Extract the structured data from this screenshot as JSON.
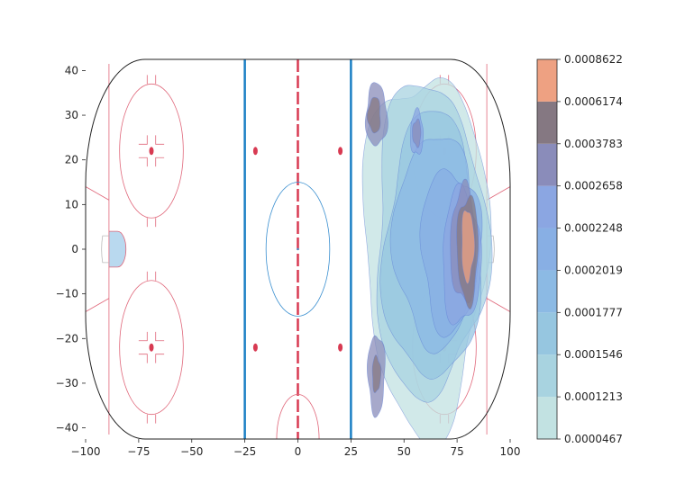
{
  "chart_data": {
    "type": "contour",
    "title": "",
    "xlabel": "",
    "ylabel": "",
    "xlim": [
      -100,
      100
    ],
    "ylim": [
      -42.5,
      42.5
    ],
    "x_ticks": [
      -100,
      -75,
      -50,
      -25,
      0,
      25,
      50,
      75,
      100
    ],
    "y_ticks": [
      -40,
      -30,
      -20,
      -10,
      0,
      10,
      20,
      30,
      40
    ],
    "grid": false,
    "background": "hockey-rink",
    "rink_features": {
      "center_line_x": 0,
      "blue_lines_x": [
        -25,
        25
      ],
      "goal_lines_x": [
        -89,
        89
      ],
      "center_circle_radius": 15,
      "faceoff_circles": [
        [
          -69,
          22
        ],
        [
          -69,
          -22
        ],
        [
          69,
          22
        ],
        [
          69,
          -22
        ]
      ],
      "neutral_dots": [
        [
          -20,
          22
        ],
        [
          -20,
          -22
        ],
        [
          20,
          22
        ],
        [
          20,
          -22
        ]
      ]
    },
    "colorbar": {
      "levels": [
        "0.0000467",
        "0.0001213",
        "0.0001546",
        "0.0001777",
        "0.0002019",
        "0.0002248",
        "0.0002658",
        "0.0003783",
        "0.0006174",
        "0.0008622"
      ],
      "colors": [
        "#c2e2e2",
        "#a8d3e0",
        "#96c6e0",
        "#8cbae4",
        "#88afe4",
        "#8ba6e2",
        "#8a8cba",
        "#857882",
        "#eea182"
      ]
    },
    "density_regions": [
      {
        "level": 1,
        "center": [
          60,
          0
        ],
        "radius": [
          29,
          40
        ]
      },
      {
        "level": 2,
        "center": [
          62,
          2
        ],
        "radius": [
          26,
          35
        ]
      },
      {
        "level": 3,
        "center": [
          63,
          0
        ],
        "radius": [
          22,
          30
        ]
      },
      {
        "level": 4,
        "center": [
          64,
          2
        ],
        "radius": [
          18,
          24
        ]
      },
      {
        "level": 5,
        "center": [
          72,
          0
        ],
        "radius": [
          14,
          18
        ]
      },
      {
        "level": 6,
        "center": [
          77,
          -2
        ],
        "radius": [
          9,
          15
        ]
      },
      {
        "level": 7,
        "center": [
          78,
          1
        ],
        "radius": [
          6,
          13
        ]
      },
      {
        "level": 8,
        "center": [
          80,
          0
        ],
        "radius": [
          5,
          12
        ]
      },
      {
        "level": 9,
        "center": [
          80,
          1
        ],
        "radius": [
          3,
          8
        ]
      },
      {
        "level": 7,
        "center": [
          37,
          30
        ],
        "radius": [
          5,
          7
        ]
      },
      {
        "level": 8,
        "center": [
          36,
          30
        ],
        "radius": [
          3,
          4
        ]
      },
      {
        "level": 7,
        "center": [
          37,
          -28
        ],
        "radius": [
          4,
          9
        ]
      },
      {
        "level": 8,
        "center": [
          37,
          -28
        ],
        "radius": [
          2,
          4
        ]
      },
      {
        "level": 6,
        "center": [
          56,
          26
        ],
        "radius": [
          3,
          5
        ]
      },
      {
        "level": 7,
        "center": [
          56,
          26
        ],
        "radius": [
          2,
          3
        ]
      }
    ]
  }
}
